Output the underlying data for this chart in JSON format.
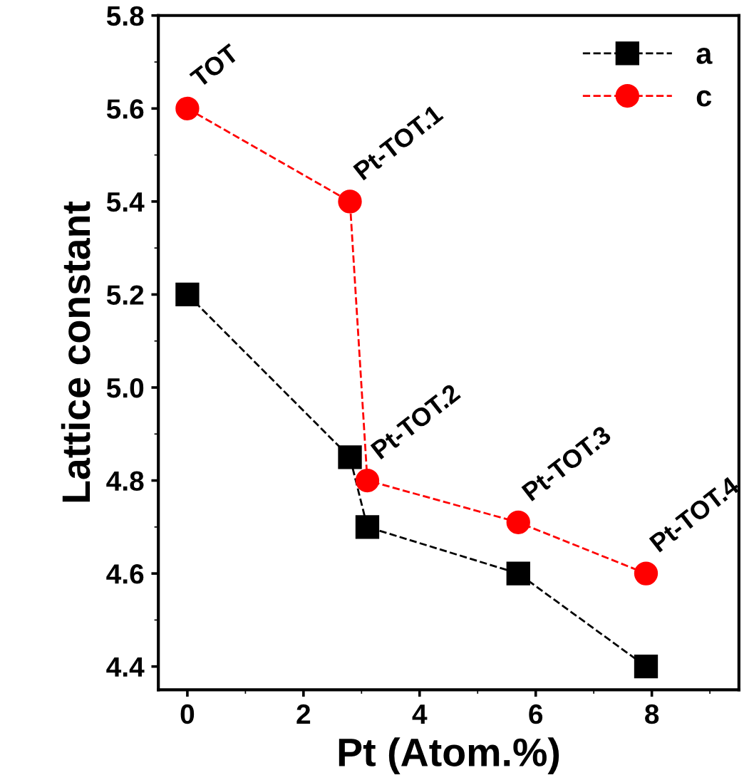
{
  "chart_data": {
    "type": "line",
    "xlabel": "Pt (Atom.%)",
    "ylabel": "Lattice constant",
    "series": [
      {
        "name": "a",
        "color": "#000000",
        "marker": "square",
        "x": [
          0,
          2.8,
          3.1,
          5.7,
          7.9
        ],
        "values": [
          5.2,
          4.85,
          4.7,
          4.6,
          4.4
        ]
      },
      {
        "name": "c",
        "color": "#ff0000",
        "marker": "circle",
        "x": [
          0,
          2.8,
          3.1,
          5.7,
          7.9
        ],
        "values": [
          5.6,
          5.4,
          4.8,
          4.71,
          4.6
        ]
      }
    ],
    "line_style": "dashed",
    "xlim": [
      -0.5,
      9.5
    ],
    "xticks": [
      0,
      2,
      4,
      6,
      8
    ],
    "ylim": [
      4.35,
      5.8
    ],
    "yticks": [
      4.4,
      4.6,
      4.8,
      {
        "value": 5,
        "label": "5.0"
      },
      5.2,
      5.4,
      5.6,
      5.8
    ],
    "legend": "top right",
    "grid": false,
    "annotations": [
      {
        "text": "TOT",
        "x": 0,
        "y": 5.6
      },
      {
        "text": "Pt-TOT.1",
        "x": 2.8,
        "y": 5.4
      },
      {
        "text": "Pt-TOT.2",
        "x": 3.1,
        "y": 4.8
      },
      {
        "text": "Pt-TOT.3",
        "x": 5.7,
        "y": 4.71
      },
      {
        "text": "Pt-TOT.4",
        "x": 7.9,
        "y": 4.6
      }
    ]
  }
}
